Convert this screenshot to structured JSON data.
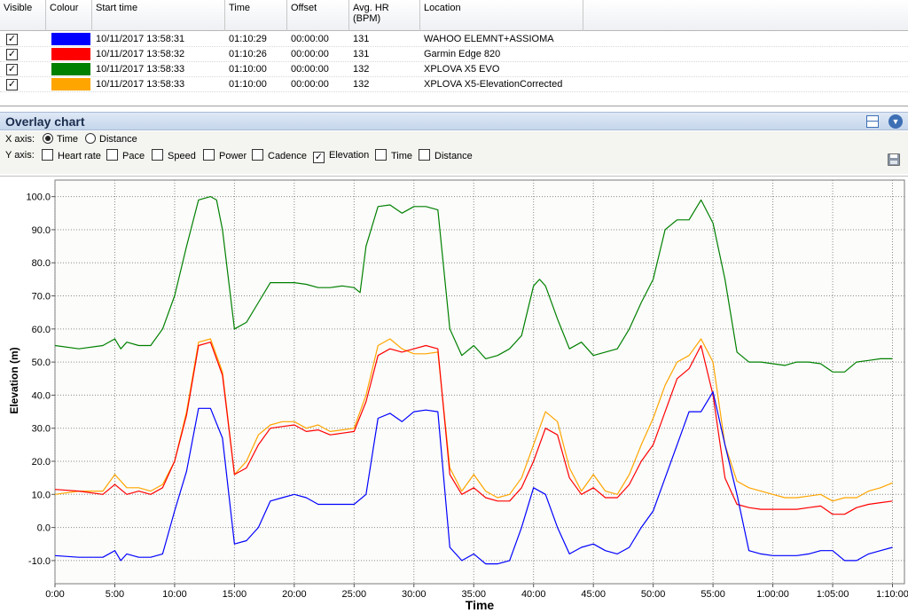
{
  "table": {
    "headers": {
      "visible": "Visible",
      "colour": "Colour",
      "start_time": "Start time",
      "time": "Time",
      "offset": "Offset",
      "avg_hr_line1": "Avg. HR",
      "avg_hr_line2": "(BPM)",
      "location": "Location"
    },
    "rows": [
      {
        "visible": true,
        "colour": "#0000ff",
        "start_time": "10/11/2017 13:58:31",
        "time": "01:10:29",
        "offset": "00:00:00",
        "avg_hr": "131",
        "location": "WAHOO ELEMNT+ASSIOMA"
      },
      {
        "visible": true,
        "colour": "#ff0000",
        "start_time": "10/11/2017 13:58:32",
        "time": "01:10:26",
        "offset": "00:00:00",
        "avg_hr": "131",
        "location": "Garmin Edge 820"
      },
      {
        "visible": true,
        "colour": "#008000",
        "start_time": "10/11/2017 13:58:33",
        "time": "01:10:00",
        "offset": "00:00:00",
        "avg_hr": "132",
        "location": "XPLOVA X5 EVO"
      },
      {
        "visible": true,
        "colour": "#ffa500",
        "start_time": "10/11/2017 13:58:33",
        "time": "01:10:00",
        "offset": "00:00:00",
        "avg_hr": "132",
        "location": "XPLOVA X5-ElevationCorrected"
      }
    ]
  },
  "overlay": {
    "title": "Overlay chart",
    "x_axis_label": "X axis:",
    "x_options": [
      {
        "label": "Time",
        "selected": true
      },
      {
        "label": "Distance",
        "selected": false
      }
    ],
    "y_axis_label": "Y axis:",
    "y_options": [
      {
        "label": "Heart rate",
        "checked": false
      },
      {
        "label": "Pace",
        "checked": false
      },
      {
        "label": "Speed",
        "checked": false
      },
      {
        "label": "Power",
        "checked": false
      },
      {
        "label": "Cadence",
        "checked": false
      },
      {
        "label": "Elevation",
        "checked": true
      },
      {
        "label": "Time",
        "checked": false
      },
      {
        "label": "Distance",
        "checked": false
      }
    ],
    "icons": [
      "layout-icon",
      "collapse-icon",
      "save-icon"
    ]
  },
  "chart_data": {
    "type": "line",
    "xlabel": "Time",
    "ylabel": "Elevation (m)",
    "x_unit": "minutes",
    "xlim": [
      0,
      71
    ],
    "ylim": [
      -17,
      105
    ],
    "xticks": [
      0,
      5,
      10,
      15,
      20,
      25,
      30,
      35,
      40,
      45,
      50,
      55,
      60,
      65,
      70
    ],
    "xtick_labels": [
      "0:00",
      "5:00",
      "10:00",
      "15:00",
      "20:00",
      "25:00",
      "30:00",
      "35:00",
      "40:00",
      "45:00",
      "50:00",
      "55:00",
      "1:00:00",
      "1:05:00",
      "1:10:00"
    ],
    "yticks": [
      -10,
      0,
      10,
      20,
      30,
      40,
      50,
      60,
      70,
      80,
      90,
      100
    ],
    "ytick_labels": [
      "-10.0",
      "0.0",
      "10.0",
      "20.0",
      "30.0",
      "40.0",
      "50.0",
      "60.0",
      "70.0",
      "80.0",
      "90.0",
      "100.0"
    ],
    "grid": true,
    "series": [
      {
        "color": "#008000",
        "x": [
          0,
          2,
          4,
          5,
          5.5,
          6,
          7,
          8,
          9,
          10,
          11,
          12,
          13,
          13.5,
          14,
          15,
          16,
          17,
          18,
          19,
          20,
          21,
          22,
          23,
          24,
          25,
          25.5,
          26,
          27,
          28,
          29,
          30,
          31,
          32,
          33,
          34,
          35,
          36,
          37,
          38,
          39,
          40,
          40.5,
          41,
          42,
          43,
          44,
          45,
          46,
          47,
          48,
          49,
          50,
          51,
          52,
          53,
          54,
          55,
          56,
          57,
          58,
          59,
          60,
          61,
          62,
          63,
          64,
          65,
          66,
          67,
          68,
          69,
          70
        ],
        "y": [
          55,
          54,
          55,
          57,
          54,
          56,
          55,
          55,
          60,
          70,
          85,
          99,
          100,
          99,
          90,
          60,
          62,
          68,
          74,
          74,
          74,
          73.5,
          72.5,
          72.5,
          73,
          72.5,
          71,
          85,
          97,
          97.5,
          95,
          97,
          97,
          96,
          60,
          52,
          55,
          51,
          52,
          54,
          58,
          73,
          75,
          73,
          63,
          54,
          56,
          52,
          53,
          54,
          60,
          68,
          75,
          90,
          93,
          93,
          99,
          92,
          75,
          53,
          50,
          50,
          49.5,
          49,
          50,
          50,
          49.5,
          47,
          47,
          50,
          50.5,
          51,
          51
        ]
      },
      {
        "color": "#ffa500",
        "x": [
          0,
          2,
          4,
          5,
          6,
          7,
          8,
          9,
          10,
          11,
          12,
          13,
          14,
          15,
          16,
          17,
          18,
          19,
          20,
          21,
          22,
          23,
          24,
          25,
          26,
          27,
          28,
          29,
          30,
          31,
          32,
          33,
          34,
          35,
          36,
          37,
          38,
          39,
          40,
          41,
          42,
          43,
          44,
          45,
          46,
          47,
          48,
          49,
          50,
          51,
          52,
          53,
          54,
          55,
          56,
          57,
          58,
          59,
          60,
          61,
          62,
          63,
          64,
          65,
          66,
          67,
          68,
          69,
          70
        ],
        "y": [
          10,
          11,
          11,
          16,
          12,
          12,
          11,
          13,
          20,
          35,
          56,
          57,
          47,
          16,
          20,
          28,
          31,
          32,
          32,
          30,
          31,
          29,
          29.5,
          30,
          40,
          55,
          57,
          54,
          52.5,
          52.5,
          53,
          18,
          11,
          16,
          11,
          9,
          10,
          15,
          25,
          35,
          32,
          18,
          11,
          16,
          11,
          10,
          16,
          25,
          33,
          43,
          50,
          52,
          57,
          50,
          25,
          14,
          12,
          11,
          10,
          9,
          9,
          9.5,
          10,
          8,
          9,
          9,
          11,
          12,
          13.5
        ]
      },
      {
        "color": "#ff0000",
        "x": [
          0,
          2,
          4,
          5,
          6,
          7,
          8,
          9,
          10,
          11,
          12,
          13,
          14,
          15,
          16,
          17,
          18,
          19,
          20,
          21,
          22,
          23,
          24,
          25,
          26,
          27,
          28,
          29,
          30,
          31,
          32,
          33,
          34,
          35,
          36,
          37,
          38,
          39,
          40,
          41,
          42,
          43,
          44,
          45,
          46,
          47,
          48,
          49,
          50,
          51,
          52,
          53,
          54,
          55,
          56,
          57,
          58,
          59,
          60,
          61,
          62,
          63,
          64,
          65,
          66,
          67,
          68,
          69,
          70
        ],
        "y": [
          11.5,
          11,
          10,
          13,
          10,
          11,
          10,
          12,
          20,
          34,
          55,
          56,
          46,
          16,
          18,
          25,
          30,
          30.5,
          31,
          29,
          29.5,
          28,
          28.5,
          29,
          38,
          52,
          54,
          53,
          54,
          55,
          54,
          16,
          10,
          12,
          9,
          8,
          8,
          12,
          20,
          30,
          28,
          15,
          10,
          12,
          9,
          9,
          13,
          20,
          25,
          35,
          45,
          48,
          55,
          40,
          15,
          7,
          6,
          5.5,
          5.5,
          5.5,
          5.5,
          6,
          6.5,
          4,
          4,
          6,
          7,
          7.5,
          8
        ]
      },
      {
        "color": "#0000ff",
        "x": [
          0,
          2,
          3,
          4,
          5,
          5.5,
          6,
          7,
          8,
          9,
          10,
          11,
          12,
          13,
          14,
          15,
          16,
          17,
          18,
          19,
          20,
          21,
          22,
          23,
          24,
          25,
          26,
          27,
          28,
          29,
          30,
          31,
          32,
          33,
          34,
          35,
          36,
          37,
          38,
          39,
          40,
          41,
          42,
          43,
          44,
          45,
          46,
          47,
          48,
          49,
          50,
          51,
          52,
          53,
          54,
          55,
          56,
          57,
          58,
          59,
          60,
          61,
          62,
          63,
          64,
          65,
          66,
          67,
          68,
          69,
          70
        ],
        "y": [
          -8.5,
          -9,
          -9,
          -9,
          -7,
          -10,
          -8,
          -9,
          -9,
          -8,
          5,
          17,
          36,
          36,
          27,
          -5,
          -4,
          0,
          8,
          9,
          10,
          9,
          7,
          7,
          7,
          7,
          10,
          33,
          34.5,
          32,
          35,
          35.5,
          35,
          -6,
          -10,
          -8,
          -11,
          -11,
          -10,
          0,
          12,
          10,
          0,
          -8,
          -6,
          -5,
          -7,
          -8,
          -6,
          0,
          5,
          15,
          25,
          35,
          35,
          41,
          25,
          10,
          -7,
          -8,
          -8.5,
          -8.5,
          -8.5,
          -8,
          -7,
          -7,
          -10,
          -10,
          -8,
          -7,
          -6
        ]
      }
    ]
  }
}
